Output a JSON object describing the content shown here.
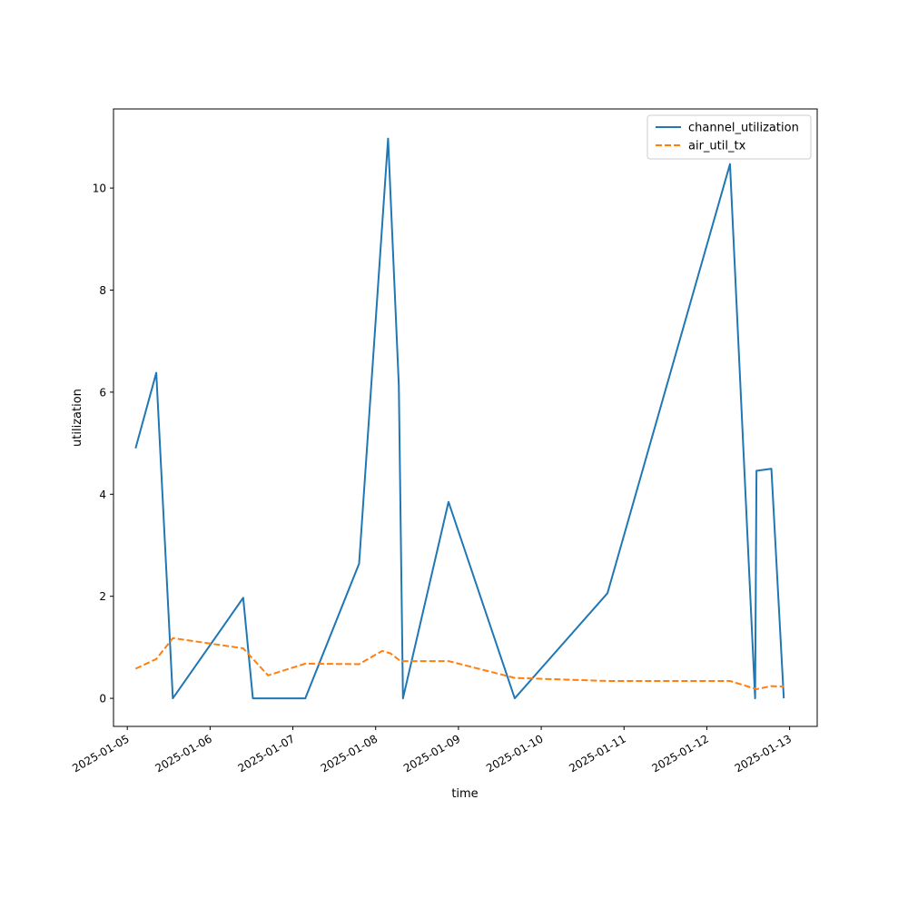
{
  "chart_data": {
    "type": "line",
    "title": "",
    "xlabel": "time",
    "ylabel": "utilization",
    "xlim": [
      "2025-01-04 20:00",
      "2025-01-13 08:00"
    ],
    "ylim": [
      -0.55,
      11.55
    ],
    "xticks": [
      {
        "value": "2025-01-05 00:00",
        "label": "2025-01-05"
      },
      {
        "value": "2025-01-06 00:00",
        "label": "2025-01-06"
      },
      {
        "value": "2025-01-07 00:00",
        "label": "2025-01-07"
      },
      {
        "value": "2025-01-08 00:00",
        "label": "2025-01-08"
      },
      {
        "value": "2025-01-09 00:00",
        "label": "2025-01-09"
      },
      {
        "value": "2025-01-10 00:00",
        "label": "2025-01-10"
      },
      {
        "value": "2025-01-11 00:00",
        "label": "2025-01-11"
      },
      {
        "value": "2025-01-12 00:00",
        "label": "2025-01-12"
      },
      {
        "value": "2025-01-13 00:00",
        "label": "2025-01-13"
      }
    ],
    "yticks": [
      {
        "value": 0,
        "label": "0"
      },
      {
        "value": 2,
        "label": "2"
      },
      {
        "value": 4,
        "label": "4"
      },
      {
        "value": 6,
        "label": "6"
      },
      {
        "value": 8,
        "label": "8"
      },
      {
        "value": 10,
        "label": "10"
      }
    ],
    "grid": false,
    "legend_position": "top-right",
    "series": [
      {
        "name": "channel_utilization",
        "color": "#1f77b4",
        "linestyle": "solid",
        "points": [
          {
            "x": "2025-01-05 02:24",
            "y": 4.9
          },
          {
            "x": "2025-01-05 08:24",
            "y": 6.38
          },
          {
            "x": "2025-01-05 13:12",
            "y": 0.0
          },
          {
            "x": "2025-01-06 09:36",
            "y": 1.97
          },
          {
            "x": "2025-01-06 12:24",
            "y": 0.0
          },
          {
            "x": "2025-01-07 03:36",
            "y": 0.0
          },
          {
            "x": "2025-01-07 19:12",
            "y": 2.64
          },
          {
            "x": "2025-01-08 03:36",
            "y": 10.97
          },
          {
            "x": "2025-01-08 06:43",
            "y": 6.13
          },
          {
            "x": "2025-01-08 07:55",
            "y": 0.0
          },
          {
            "x": "2025-01-08 21:07",
            "y": 3.85
          },
          {
            "x": "2025-01-09 16:19",
            "y": 0.0
          },
          {
            "x": "2025-01-10 19:12",
            "y": 2.06
          },
          {
            "x": "2025-01-12 06:43",
            "y": 10.47
          },
          {
            "x": "2025-01-12 14:00",
            "y": 0.0
          },
          {
            "x": "2025-01-12 14:24",
            "y": 4.46
          },
          {
            "x": "2025-01-12 18:43",
            "y": 4.5
          },
          {
            "x": "2025-01-12 22:19",
            "y": 0.0
          }
        ]
      },
      {
        "name": "air_util_tx",
        "color": "#ff7f0e",
        "linestyle": "dashed",
        "points": [
          {
            "x": "2025-01-05 02:24",
            "y": 0.58
          },
          {
            "x": "2025-01-05 08:24",
            "y": 0.77
          },
          {
            "x": "2025-01-05 13:12",
            "y": 1.18
          },
          {
            "x": "2025-01-06 09:36",
            "y": 0.98
          },
          {
            "x": "2025-01-06 16:48",
            "y": 0.45
          },
          {
            "x": "2025-01-07 03:36",
            "y": 0.68
          },
          {
            "x": "2025-01-07 19:12",
            "y": 0.67
          },
          {
            "x": "2025-01-08 01:55",
            "y": 0.93
          },
          {
            "x": "2025-01-08 04:19",
            "y": 0.88
          },
          {
            "x": "2025-01-08 07:12",
            "y": 0.73
          },
          {
            "x": "2025-01-08 21:07",
            "y": 0.73
          },
          {
            "x": "2025-01-09 16:19",
            "y": 0.4
          },
          {
            "x": "2025-01-10 19:12",
            "y": 0.34
          },
          {
            "x": "2025-01-12 06:43",
            "y": 0.34
          },
          {
            "x": "2025-01-12 14:24",
            "y": 0.18
          },
          {
            "x": "2025-01-12 18:43",
            "y": 0.24
          },
          {
            "x": "2025-01-12 22:19",
            "y": 0.23
          }
        ]
      }
    ]
  }
}
